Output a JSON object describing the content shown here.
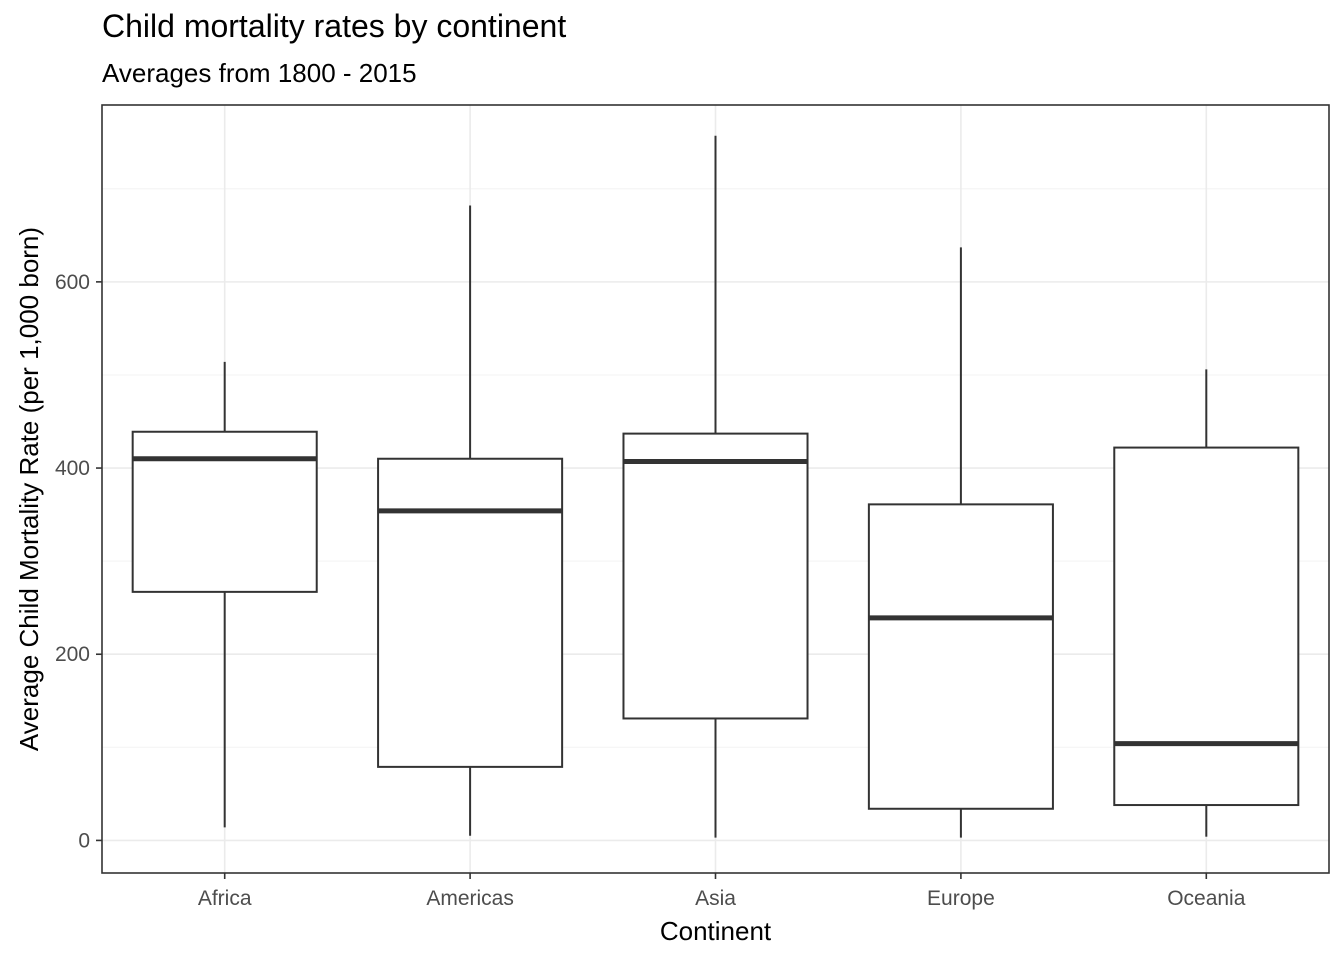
{
  "chart_data": {
    "type": "boxplot",
    "title": "Child mortality rates by continent",
    "subtitle": "Averages from 1800 - 2015",
    "xlabel": "Continent",
    "ylabel": "Average Child Mortality Rate (per 1,000 born)",
    "categories": [
      "Africa",
      "Americas",
      "Asia",
      "Europe",
      "Oceania"
    ],
    "boxes": [
      {
        "name": "Africa",
        "min": 14,
        "q1": 267,
        "median": 410,
        "q3": 439,
        "max": 514
      },
      {
        "name": "Americas",
        "min": 5,
        "q1": 79,
        "median": 354,
        "q3": 410,
        "max": 682
      },
      {
        "name": "Asia",
        "min": 3,
        "q1": 131,
        "median": 407,
        "q3": 437,
        "max": 757
      },
      {
        "name": "Europe",
        "min": 3,
        "q1": 34,
        "median": 239,
        "q3": 361,
        "max": 637
      },
      {
        "name": "Oceania",
        "min": 4,
        "q1": 38,
        "median": 104,
        "q3": 422,
        "max": 506
      }
    ],
    "yticks": [
      0,
      200,
      400,
      600
    ],
    "ylim": [
      -35,
      790
    ],
    "grid": true,
    "theme": {
      "box_stroke": "#333333",
      "panel_border": "#333333",
      "grid_major": "#ebebeb",
      "grid_minor": "#f5f5f5"
    }
  }
}
